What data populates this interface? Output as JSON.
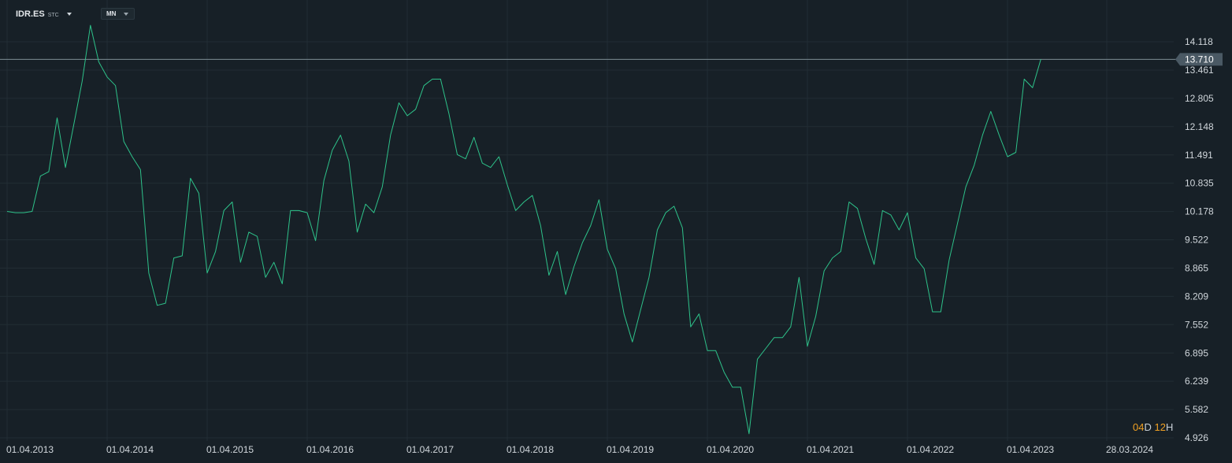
{
  "header": {
    "symbol": "IDR.ES",
    "exchange": "STC",
    "timeframe": "MN"
  },
  "countdown": {
    "days": "04",
    "days_unit": "D",
    "hours": "12",
    "hours_unit": "H"
  },
  "colors": {
    "background": "#172027",
    "line": "#2ec28a",
    "grid": "#222d34",
    "price_line": "#7d8c95",
    "price_badge": "#4a5964",
    "axis_text": "#d0d6db",
    "countdown_number": "#f0a023"
  },
  "chart_data": {
    "type": "line",
    "title": "",
    "xlabel": "",
    "ylabel": "",
    "y_ticks": [
      "14.118",
      "13.461",
      "12.805",
      "12.148",
      "11.491",
      "10.835",
      "10.178",
      "9.522",
      "8.865",
      "8.209",
      "7.552",
      "6.895",
      "6.239",
      "5.582",
      "4.926"
    ],
    "x_tick_labels": [
      "01.04.2013",
      "01.04.2014",
      "01.04.2015",
      "01.04.2016",
      "01.04.2017",
      "01.04.2018",
      "01.04.2019",
      "01.04.2020",
      "01.04.2021",
      "01.04.2022",
      "01.04.2023",
      "28.03.2024"
    ],
    "ylim": [
      4.926,
      14.55
    ],
    "xlim": [
      "2013-04",
      "2024-04"
    ],
    "last_price": "13.710",
    "grid": true,
    "series": [
      {
        "x": [
          "2013-04",
          "2013-05",
          "2013-06",
          "2013-07",
          "2013-08",
          "2013-09",
          "2013-10",
          "2013-11",
          "2013-12",
          "2014-01",
          "2014-02",
          "2014-03",
          "2014-04",
          "2014-05",
          "2014-06",
          "2014-07",
          "2014-08",
          "2014-09",
          "2014-10",
          "2014-11",
          "2014-12",
          "2015-01",
          "2015-02",
          "2015-03",
          "2015-04",
          "2015-05",
          "2015-06",
          "2015-07",
          "2015-08",
          "2015-09",
          "2015-10",
          "2015-11",
          "2015-12",
          "2016-01",
          "2016-02",
          "2016-03",
          "2016-04",
          "2016-05",
          "2016-06",
          "2016-07",
          "2016-08",
          "2016-09",
          "2016-10",
          "2016-11",
          "2016-12",
          "2017-01",
          "2017-02",
          "2017-03",
          "2017-04",
          "2017-05",
          "2017-06",
          "2017-07",
          "2017-08",
          "2017-09",
          "2017-10",
          "2017-11",
          "2017-12",
          "2018-01",
          "2018-02",
          "2018-03",
          "2018-04",
          "2018-05",
          "2018-06",
          "2018-07",
          "2018-08",
          "2018-09",
          "2018-10",
          "2018-11",
          "2018-12",
          "2019-01",
          "2019-02",
          "2019-03",
          "2019-04",
          "2019-05",
          "2019-06",
          "2019-07",
          "2019-08",
          "2019-09",
          "2019-10",
          "2019-11",
          "2019-12",
          "2020-01",
          "2020-02",
          "2020-03",
          "2020-04",
          "2020-05",
          "2020-06",
          "2020-07",
          "2020-08",
          "2020-09",
          "2020-10",
          "2020-11",
          "2020-12",
          "2021-01",
          "2021-02",
          "2021-03",
          "2021-04",
          "2021-05",
          "2021-06",
          "2021-07",
          "2021-08",
          "2021-09",
          "2021-10",
          "2021-11",
          "2021-12",
          "2022-01",
          "2022-02",
          "2022-03",
          "2022-04",
          "2022-05",
          "2022-06",
          "2022-07",
          "2022-08",
          "2022-09",
          "2022-10",
          "2022-11",
          "2022-12",
          "2023-01",
          "2023-02",
          "2023-03",
          "2023-04",
          "2023-05",
          "2023-06",
          "2023-07",
          "2023-08"
        ],
        "values": [
          10.18,
          10.15,
          10.15,
          10.18,
          11.0,
          11.1,
          12.35,
          11.2,
          12.2,
          13.2,
          14.5,
          13.65,
          13.3,
          13.1,
          11.8,
          11.45,
          11.15,
          8.75,
          8.0,
          8.05,
          9.1,
          9.15,
          10.95,
          10.6,
          8.75,
          9.25,
          10.2,
          10.4,
          9.0,
          9.7,
          9.6,
          8.65,
          9.0,
          8.5,
          10.2,
          10.2,
          10.15,
          9.5,
          10.9,
          11.6,
          11.95,
          11.35,
          9.7,
          10.35,
          10.15,
          10.75,
          11.95,
          12.7,
          12.4,
          12.55,
          13.1,
          13.25,
          13.25,
          12.45,
          11.5,
          11.4,
          11.9,
          11.3,
          11.2,
          11.45,
          10.8,
          10.2,
          10.4,
          10.55,
          9.85,
          8.7,
          9.25,
          8.25,
          8.9,
          9.45,
          9.85,
          10.45,
          9.3,
          8.85,
          7.8,
          7.15,
          7.9,
          8.65,
          9.75,
          10.15,
          10.3,
          9.8,
          7.5,
          7.8,
          6.95,
          6.95,
          6.45,
          6.1,
          6.1,
          5.02,
          6.75,
          7.0,
          7.25,
          7.25,
          7.5,
          8.65,
          7.05,
          7.75,
          8.8,
          9.1,
          9.25,
          10.4,
          10.25,
          9.55,
          8.95,
          10.2,
          10.1,
          9.75,
          10.15,
          9.1,
          8.85,
          7.85,
          7.85,
          9.05,
          9.9,
          10.75,
          11.25,
          11.95,
          12.5,
          11.95,
          11.45,
          11.55,
          13.25,
          13.05,
          13.71
        ]
      }
    ]
  }
}
